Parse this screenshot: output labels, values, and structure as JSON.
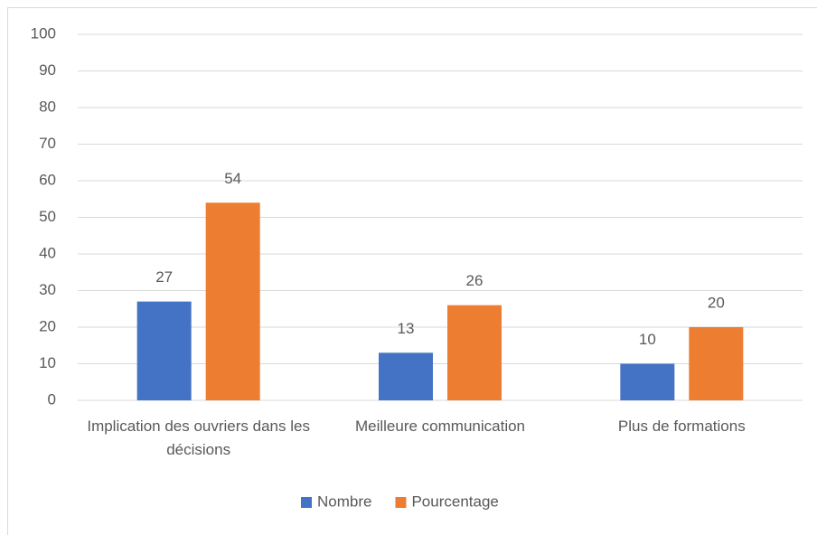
{
  "chart_data": {
    "type": "bar",
    "categories": [
      "Implication des ouvriers dans les décisions",
      "Meilleure communication",
      "Plus de formations"
    ],
    "series": [
      {
        "name": "Nombre",
        "color": "#4472c4",
        "values": [
          27,
          13,
          10
        ]
      },
      {
        "name": "Pourcentage",
        "color": "#ed7d31",
        "values": [
          54,
          26,
          20
        ]
      }
    ],
    "ylim": [
      0,
      100
    ],
    "yticks": [
      0,
      10,
      20,
      30,
      40,
      50,
      60,
      70,
      80,
      90,
      100
    ],
    "grid": true,
    "legend": "bottom"
  }
}
